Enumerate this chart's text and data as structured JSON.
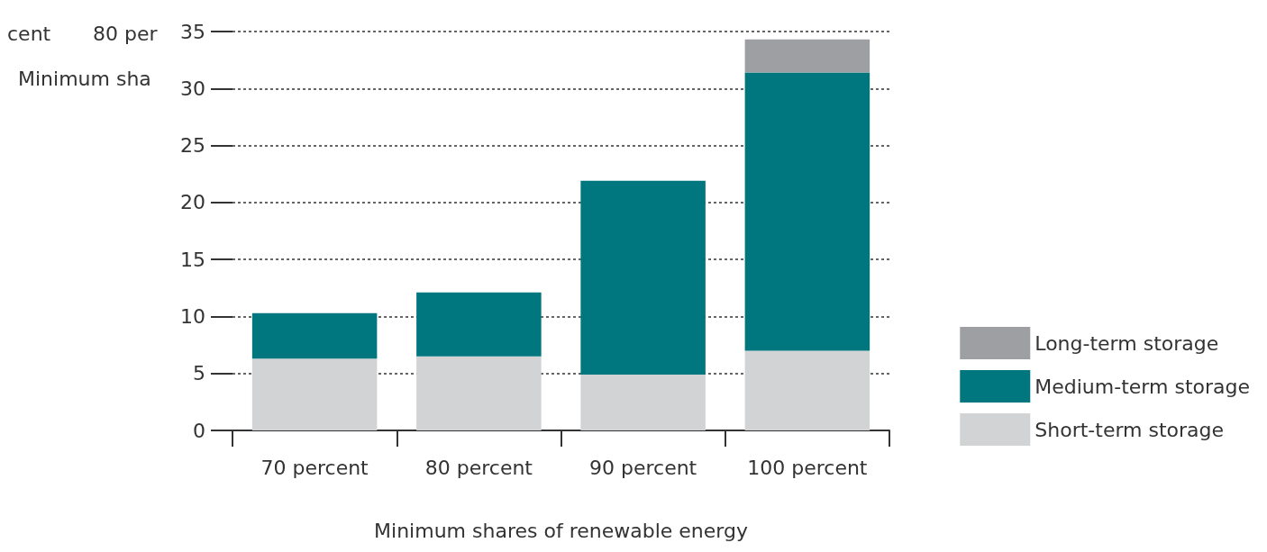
{
  "chart_data": {
    "type": "bar",
    "stacked": true,
    "xlabel": "Minimum shares of renewable energy",
    "categories": [
      "70 percent",
      "80 percent",
      "90 percent",
      "100 percent"
    ],
    "series": [
      {
        "name": "Short-term storage",
        "color": "#d1d3d4",
        "values": [
          6.3,
          6.5,
          4.9,
          7.0
        ]
      },
      {
        "name": "Medium-term storage",
        "color": "#00767f",
        "values": [
          4.0,
          5.6,
          17.0,
          24.4
        ]
      },
      {
        "name": "Long-term storage",
        "color": "#9d9fa2",
        "values": [
          0,
          0,
          0,
          2.9
        ]
      }
    ],
    "ylim": [
      0,
      35
    ],
    "yticks": [
      0,
      5,
      10,
      15,
      20,
      25,
      30,
      35
    ],
    "grid": "y",
    "legend": "right",
    "annotations": [
      "cent",
      "80 per",
      "Minimum sha"
    ]
  }
}
